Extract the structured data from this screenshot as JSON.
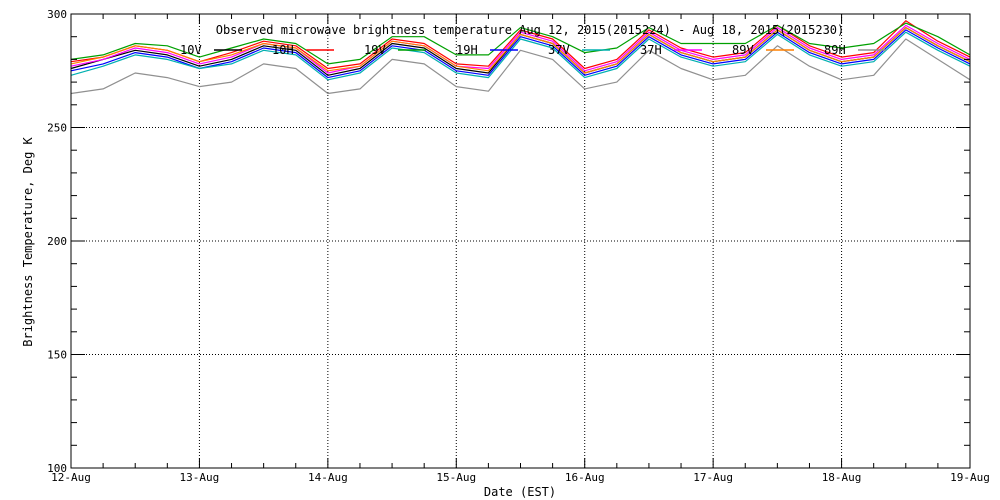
{
  "chart_data": {
    "type": "line",
    "title": "Observed microwave brightness temperature Aug 12, 2015(2015224) - Aug 18, 2015(2015230)",
    "xlabel": "Date (EST)",
    "ylabel": "Brightness Temperature, Deg K",
    "xlim": [
      0,
      7
    ],
    "ylim": [
      100,
      300
    ],
    "x_ticks": [
      {
        "x": 0,
        "label": "12-Aug"
      },
      {
        "x": 1,
        "label": "13-Aug"
      },
      {
        "x": 2,
        "label": "14-Aug"
      },
      {
        "x": 3,
        "label": "15-Aug"
      },
      {
        "x": 4,
        "label": "16-Aug"
      },
      {
        "x": 5,
        "label": "17-Aug"
      },
      {
        "x": 6,
        "label": "18-Aug"
      },
      {
        "x": 7,
        "label": "19-Aug"
      }
    ],
    "y_ticks": [
      100,
      150,
      200,
      250,
      300
    ],
    "grid": true,
    "legend_position": "top",
    "x": [
      0,
      0.25,
      0.5,
      0.75,
      1.0,
      1.25,
      1.5,
      1.75,
      2.0,
      2.25,
      2.5,
      2.75,
      3.0,
      3.25,
      3.5,
      3.75,
      4.0,
      4.25,
      4.5,
      4.75,
      5.0,
      5.25,
      5.5,
      5.75,
      6.0,
      6.25,
      6.5,
      6.75,
      7.0
    ],
    "series": [
      {
        "name": "10V",
        "color": "#000000",
        "values": [
          276,
          280,
          284,
          282,
          277,
          280,
          286,
          284,
          273,
          276,
          287,
          285,
          276,
          274,
          291,
          287,
          274,
          278,
          291,
          283,
          279,
          281,
          293,
          284,
          279,
          281,
          294,
          286,
          279
        ]
      },
      {
        "name": "10H",
        "color": "#ff0000",
        "values": [
          279,
          281,
          286,
          284,
          279,
          283,
          288,
          286,
          276,
          278,
          289,
          287,
          278,
          277,
          293,
          289,
          276,
          280,
          293,
          285,
          281,
          283,
          295,
          286,
          281,
          283,
          297,
          288,
          281
        ]
      },
      {
        "name": "19V",
        "color": "#00a000",
        "values": [
          280,
          282,
          287,
          286,
          281,
          285,
          289,
          287,
          278,
          280,
          290,
          290,
          282,
          282,
          294,
          290,
          283,
          285,
          294,
          287,
          287,
          287,
          295,
          287,
          285,
          287,
          296,
          290,
          282
        ]
      },
      {
        "name": "19H",
        "color": "#0000ff",
        "values": [
          275,
          278,
          283,
          281,
          276,
          279,
          285,
          283,
          272,
          275,
          286,
          284,
          275,
          273,
          290,
          286,
          273,
          277,
          290,
          282,
          278,
          280,
          292,
          283,
          278,
          280,
          293,
          285,
          278
        ]
      },
      {
        "name": "37V",
        "color": "#00b0b0",
        "values": [
          273,
          277,
          282,
          280,
          276,
          278,
          284,
          282,
          271,
          274,
          285,
          283,
          274,
          272,
          289,
          285,
          272,
          276,
          289,
          281,
          277,
          279,
          291,
          282,
          277,
          279,
          292,
          284,
          277
        ]
      },
      {
        "name": "37H",
        "color": "#ff00ff",
        "values": [
          277,
          280,
          285,
          283,
          278,
          281,
          287,
          285,
          274,
          277,
          288,
          286,
          277,
          276,
          292,
          288,
          275,
          279,
          292,
          284,
          280,
          282,
          294,
          285,
          280,
          282,
          295,
          287,
          280
        ]
      },
      {
        "name": "89V",
        "color": "#ff8000",
        "values": [
          278,
          281,
          286,
          284,
          279,
          282,
          287,
          285,
          275,
          277,
          288,
          286,
          277,
          275,
          291,
          287,
          274,
          278,
          291,
          283,
          279,
          281,
          293,
          284,
          279,
          281,
          294,
          286,
          279
        ]
      },
      {
        "name": "89H",
        "color": "#909090",
        "values": [
          265,
          267,
          274,
          272,
          268,
          270,
          278,
          276,
          265,
          267,
          280,
          278,
          268,
          266,
          284,
          280,
          267,
          270,
          284,
          276,
          271,
          273,
          286,
          277,
          271,
          273,
          289,
          280,
          271
        ]
      }
    ]
  }
}
